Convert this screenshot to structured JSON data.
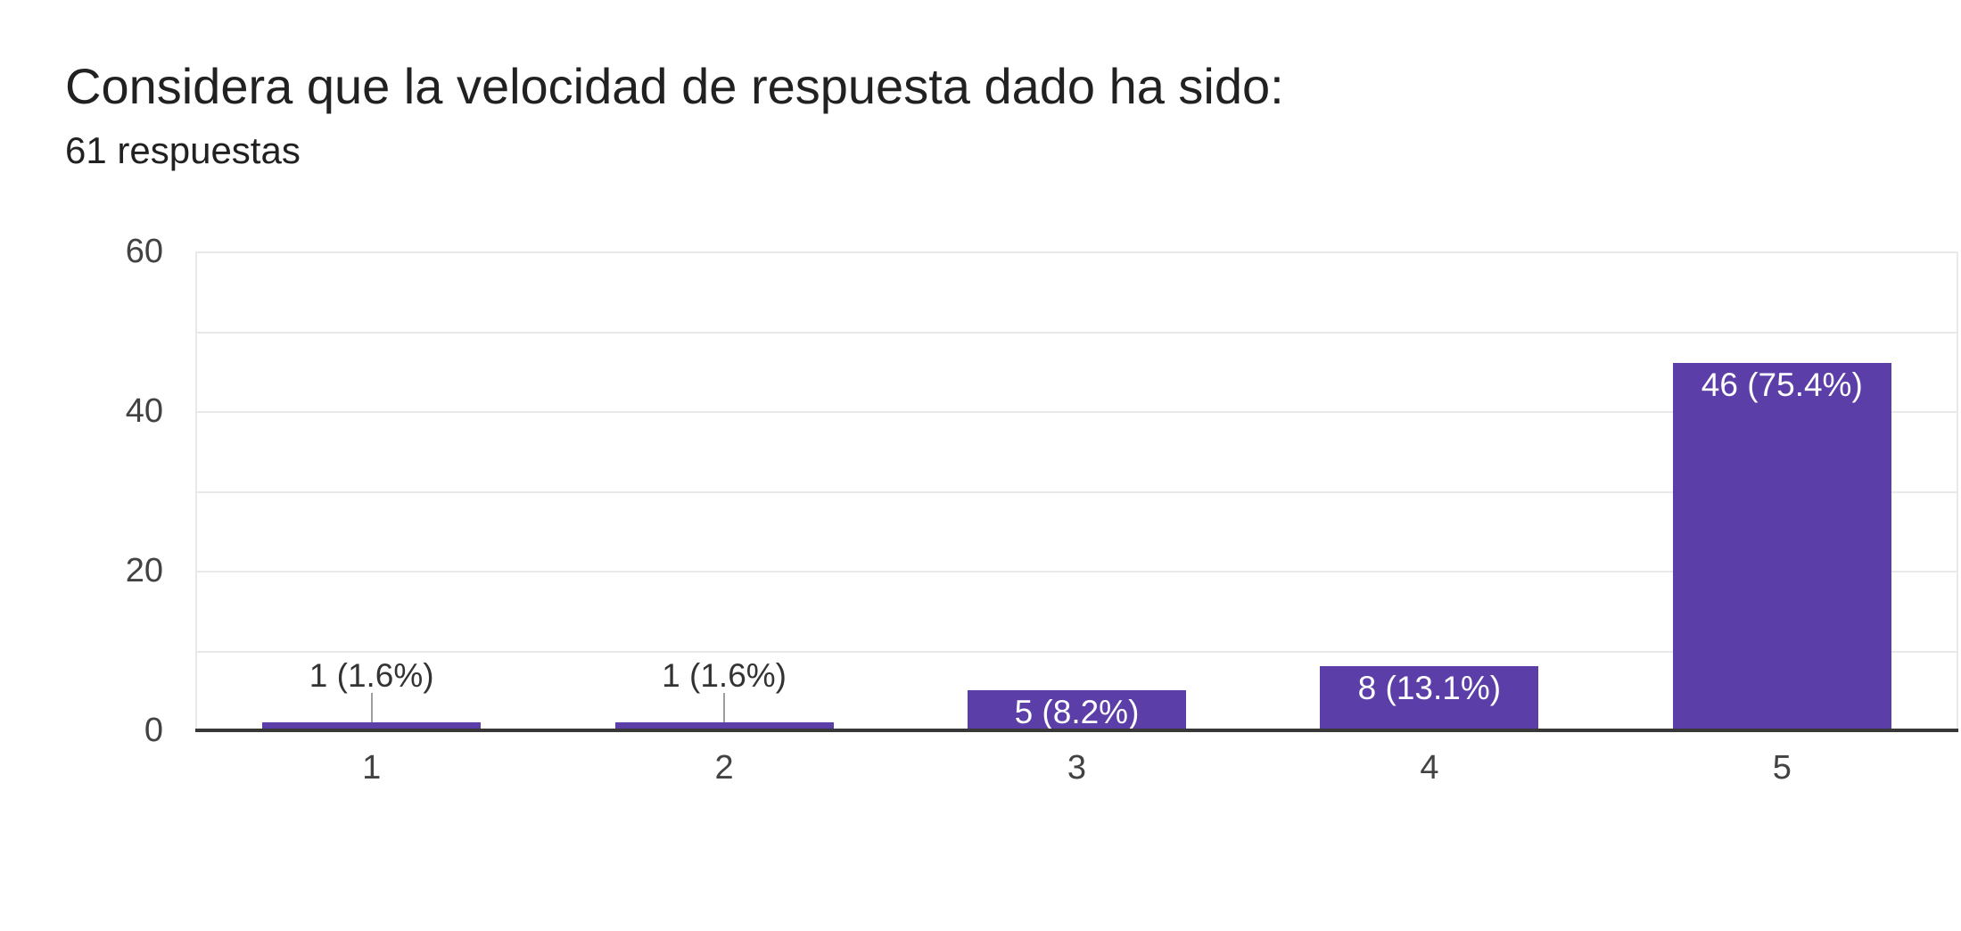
{
  "header": {
    "title": "Considera que la velocidad de respuesta dado ha sido:",
    "responses": "61 respuestas"
  },
  "chart_data": {
    "type": "bar",
    "title": "Considera que la velocidad de respuesta dado ha sido:",
    "subtitle": "61 respuestas",
    "total_responses": 61,
    "categories": [
      "1",
      "2",
      "3",
      "4",
      "5"
    ],
    "values": [
      1,
      1,
      5,
      8,
      46
    ],
    "bar_labels": [
      "1 (1.6%)",
      "1 (1.6%)",
      "5 (8.2%)",
      "8 (13.1%)",
      "46 (75.4%)"
    ],
    "label_placement": [
      "outside",
      "outside",
      "inside",
      "inside",
      "inside"
    ],
    "y_ticks": [
      60,
      40,
      20,
      0
    ],
    "ylim": [
      0,
      60
    ],
    "grid_step": 10,
    "grid": true,
    "legend_position": "none",
    "xlabel": "",
    "ylabel": "",
    "bar_color": "#5b3ea8",
    "outside_label_color": "#333333",
    "inside_label_color": "#ffffff",
    "leader_line_color": "#9e9e9e",
    "axis_line_color": "#383838"
  }
}
